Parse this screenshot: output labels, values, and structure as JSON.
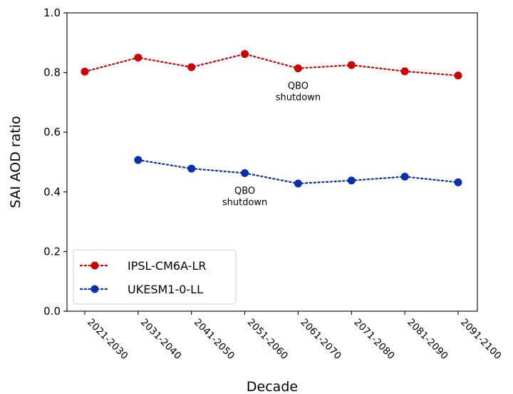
{
  "chart_data": {
    "type": "line",
    "title": "",
    "xlabel": "Decade",
    "ylabel": "SAI AOD ratio",
    "categories": [
      "2021-2030",
      "2031-2040",
      "2041-2050",
      "2051-2060",
      "2061-2070",
      "2071-2080",
      "2081-2090",
      "2091-2100"
    ],
    "ylim": [
      0.0,
      1.0
    ],
    "yticks": [
      "0.0",
      "0.2",
      "0.4",
      "0.6",
      "0.8",
      "1.0"
    ],
    "grid": false,
    "legend_position": "lower-left",
    "series": [
      {
        "name": "IPSL-CM6A-LR",
        "color": "#cc0000",
        "line_style": "dotted",
        "marker": "circle",
        "values": [
          0.803,
          0.85,
          0.818,
          0.862,
          0.814,
          0.825,
          0.804,
          0.79
        ]
      },
      {
        "name": "UKESM1-0-LL",
        "color": "#0a2fa8",
        "line_style": "dotted",
        "marker": "circle",
        "values": [
          null,
          0.507,
          0.478,
          0.463,
          0.428,
          0.438,
          0.451,
          0.432
        ]
      }
    ],
    "annotations": [
      {
        "lines": [
          "QBO",
          "shutdown"
        ],
        "series": "IPSL-CM6A-LR",
        "category": "2061-2070"
      },
      {
        "lines": [
          "QBO",
          "shutdown"
        ],
        "series": "UKESM1-0-LL",
        "category": "2051-2060"
      }
    ]
  }
}
